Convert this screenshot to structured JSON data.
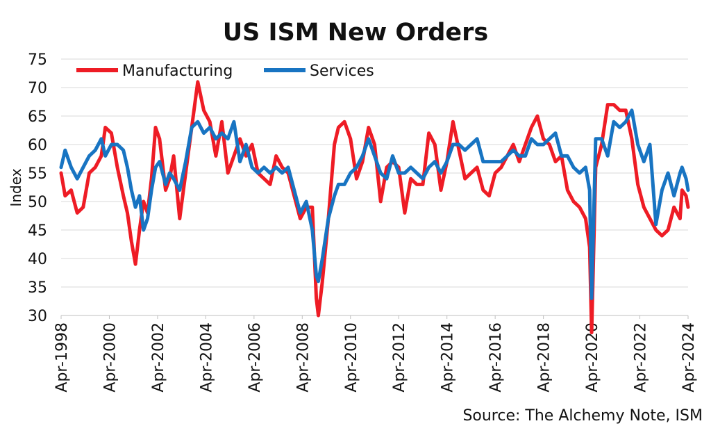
{
  "chart_data": {
    "type": "line",
    "title": "US ISM New Orders",
    "ylabel": "Index",
    "xlabel": "",
    "ylim": [
      30,
      75
    ],
    "yticks": [
      30,
      35,
      40,
      45,
      50,
      55,
      60,
      65,
      70,
      75
    ],
    "xlim": [
      "1998-04",
      "2024-04"
    ],
    "xticks": [
      "Apr-1998",
      "Apr-2000",
      "Apr-2002",
      "Apr-2004",
      "Apr-2006",
      "Apr-2008",
      "Apr-2010",
      "Apr-2012",
      "Apr-2014",
      "Apr-2016",
      "Apr-2018",
      "Apr-2020",
      "Apr-2022",
      "Apr-2024"
    ],
    "grid": true,
    "legend_position": "top-left",
    "source": "Source: The Alchemy Note, ISM",
    "series": [
      {
        "name": "Manufacturing",
        "color": "#ee1c25",
        "points": [
          [
            "1998-04",
            55
          ],
          [
            "1998-06",
            51
          ],
          [
            "1998-09",
            52
          ],
          [
            "1998-12",
            48
          ],
          [
            "1999-03",
            49
          ],
          [
            "1999-06",
            55
          ],
          [
            "1999-09",
            56
          ],
          [
            "1999-12",
            58
          ],
          [
            "2000-02",
            63
          ],
          [
            "2000-05",
            62
          ],
          [
            "2000-08",
            56
          ],
          [
            "2000-11",
            51
          ],
          [
            "2001-01",
            48
          ],
          [
            "2001-03",
            43
          ],
          [
            "2001-05",
            39
          ],
          [
            "2001-07",
            45
          ],
          [
            "2001-09",
            50
          ],
          [
            "2001-11",
            48
          ],
          [
            "2002-01",
            54
          ],
          [
            "2002-03",
            63
          ],
          [
            "2002-05",
            61
          ],
          [
            "2002-08",
            52
          ],
          [
            "2002-10",
            54
          ],
          [
            "2002-12",
            58
          ],
          [
            "2003-03",
            47
          ],
          [
            "2003-06",
            55
          ],
          [
            "2003-09",
            63
          ],
          [
            "2003-12",
            71
          ],
          [
            "2004-03",
            66
          ],
          [
            "2004-06",
            64
          ],
          [
            "2004-09",
            58
          ],
          [
            "2004-12",
            64
          ],
          [
            "2005-03",
            55
          ],
          [
            "2005-06",
            58
          ],
          [
            "2005-09",
            61
          ],
          [
            "2005-12",
            58
          ],
          [
            "2006-03",
            60
          ],
          [
            "2006-06",
            55
          ],
          [
            "2006-09",
            54
          ],
          [
            "2006-12",
            53
          ],
          [
            "2007-03",
            58
          ],
          [
            "2007-06",
            56
          ],
          [
            "2007-09",
            55
          ],
          [
            "2007-12",
            51
          ],
          [
            "2008-03",
            47
          ],
          [
            "2008-06",
            49
          ],
          [
            "2008-09",
            49
          ],
          [
            "2008-11",
            33
          ],
          [
            "2008-12",
            30
          ],
          [
            "2009-02",
            36
          ],
          [
            "2009-05",
            47
          ],
          [
            "2009-08",
            60
          ],
          [
            "2009-10",
            63
          ],
          [
            "2010-01",
            64
          ],
          [
            "2010-04",
            61
          ],
          [
            "2010-07",
            54
          ],
          [
            "2010-10",
            57
          ],
          [
            "2011-01",
            63
          ],
          [
            "2011-04",
            60
          ],
          [
            "2011-07",
            50
          ],
          [
            "2011-10",
            56
          ],
          [
            "2012-01",
            57
          ],
          [
            "2012-04",
            56
          ],
          [
            "2012-07",
            48
          ],
          [
            "2012-10",
            54
          ],
          [
            "2013-01",
            53
          ],
          [
            "2013-04",
            53
          ],
          [
            "2013-07",
            62
          ],
          [
            "2013-10",
            60
          ],
          [
            "2014-01",
            52
          ],
          [
            "2014-04",
            57
          ],
          [
            "2014-07",
            64
          ],
          [
            "2014-10",
            59
          ],
          [
            "2015-01",
            54
          ],
          [
            "2015-04",
            55
          ],
          [
            "2015-07",
            56
          ],
          [
            "2015-10",
            52
          ],
          [
            "2016-01",
            51
          ],
          [
            "2016-04",
            55
          ],
          [
            "2016-07",
            56
          ],
          [
            "2016-10",
            58
          ],
          [
            "2017-01",
            60
          ],
          [
            "2017-04",
            57
          ],
          [
            "2017-07",
            60
          ],
          [
            "2017-10",
            63
          ],
          [
            "2018-01",
            65
          ],
          [
            "2018-04",
            61
          ],
          [
            "2018-07",
            60
          ],
          [
            "2018-10",
            57
          ],
          [
            "2019-01",
            58
          ],
          [
            "2019-04",
            52
          ],
          [
            "2019-07",
            50
          ],
          [
            "2019-10",
            49
          ],
          [
            "2020-01",
            47
          ],
          [
            "2020-03",
            42
          ],
          [
            "2020-04",
            27
          ],
          [
            "2020-06",
            56
          ],
          [
            "2020-09",
            60
          ],
          [
            "2020-12",
            67
          ],
          [
            "2021-03",
            67
          ],
          [
            "2021-06",
            66
          ],
          [
            "2021-09",
            66
          ],
          [
            "2021-12",
            61
          ],
          [
            "2022-03",
            53
          ],
          [
            "2022-06",
            49
          ],
          [
            "2022-09",
            47
          ],
          [
            "2022-12",
            45
          ],
          [
            "2023-03",
            44
          ],
          [
            "2023-06",
            45
          ],
          [
            "2023-09",
            49
          ],
          [
            "2023-12",
            47
          ],
          [
            "2024-01",
            52
          ],
          [
            "2024-03",
            51
          ],
          [
            "2024-04",
            49
          ]
        ]
      },
      {
        "name": "Services",
        "color": "#1874c2",
        "points": [
          [
            "1998-04",
            56
          ],
          [
            "1998-06",
            59
          ],
          [
            "1998-09",
            56
          ],
          [
            "1998-12",
            54
          ],
          [
            "1999-03",
            56
          ],
          [
            "1999-06",
            58
          ],
          [
            "1999-09",
            59
          ],
          [
            "1999-12",
            61
          ],
          [
            "2000-02",
            58
          ],
          [
            "2000-05",
            60
          ],
          [
            "2000-08",
            60
          ],
          [
            "2000-11",
            59
          ],
          [
            "2001-01",
            56
          ],
          [
            "2001-03",
            52
          ],
          [
            "2001-05",
            49
          ],
          [
            "2001-07",
            51
          ],
          [
            "2001-09",
            45
          ],
          [
            "2001-11",
            47
          ],
          [
            "2002-01",
            52
          ],
          [
            "2002-03",
            56
          ],
          [
            "2002-05",
            57
          ],
          [
            "2002-08",
            53
          ],
          [
            "2002-10",
            55
          ],
          [
            "2002-12",
            54
          ],
          [
            "2003-03",
            52
          ],
          [
            "2003-06",
            57
          ],
          [
            "2003-09",
            63
          ],
          [
            "2003-12",
            64
          ],
          [
            "2004-03",
            62
          ],
          [
            "2004-06",
            63
          ],
          [
            "2004-09",
            61
          ],
          [
            "2004-12",
            62
          ],
          [
            "2005-03",
            61
          ],
          [
            "2005-06",
            64
          ],
          [
            "2005-09",
            57
          ],
          [
            "2005-12",
            60
          ],
          [
            "2006-03",
            56
          ],
          [
            "2006-06",
            55
          ],
          [
            "2006-09",
            56
          ],
          [
            "2006-12",
            55
          ],
          [
            "2007-03",
            56
          ],
          [
            "2007-06",
            55
          ],
          [
            "2007-09",
            56
          ],
          [
            "2007-12",
            52
          ],
          [
            "2008-03",
            48
          ],
          [
            "2008-06",
            50
          ],
          [
            "2008-09",
            45
          ],
          [
            "2008-11",
            37
          ],
          [
            "2008-12",
            36
          ],
          [
            "2009-02",
            40
          ],
          [
            "2009-05",
            47
          ],
          [
            "2009-08",
            51
          ],
          [
            "2009-10",
            53
          ],
          [
            "2010-01",
            53
          ],
          [
            "2010-04",
            55
          ],
          [
            "2010-07",
            56
          ],
          [
            "2010-10",
            58
          ],
          [
            "2011-01",
            61
          ],
          [
            "2011-04",
            58
          ],
          [
            "2011-07",
            55
          ],
          [
            "2011-10",
            54
          ],
          [
            "2012-01",
            58
          ],
          [
            "2012-04",
            55
          ],
          [
            "2012-07",
            55
          ],
          [
            "2012-10",
            56
          ],
          [
            "2013-01",
            55
          ],
          [
            "2013-04",
            54
          ],
          [
            "2013-07",
            56
          ],
          [
            "2013-10",
            57
          ],
          [
            "2014-01",
            55
          ],
          [
            "2014-04",
            57
          ],
          [
            "2014-07",
            60
          ],
          [
            "2014-10",
            60
          ],
          [
            "2015-01",
            59
          ],
          [
            "2015-04",
            60
          ],
          [
            "2015-07",
            61
          ],
          [
            "2015-10",
            57
          ],
          [
            "2016-01",
            57
          ],
          [
            "2016-04",
            57
          ],
          [
            "2016-07",
            57
          ],
          [
            "2016-10",
            58
          ],
          [
            "2017-01",
            59
          ],
          [
            "2017-04",
            58
          ],
          [
            "2017-07",
            58
          ],
          [
            "2017-10",
            61
          ],
          [
            "2018-01",
            60
          ],
          [
            "2018-04",
            60
          ],
          [
            "2018-07",
            61
          ],
          [
            "2018-10",
            62
          ],
          [
            "2019-01",
            58
          ],
          [
            "2019-04",
            58
          ],
          [
            "2019-07",
            56
          ],
          [
            "2019-10",
            55
          ],
          [
            "2020-01",
            56
          ],
          [
            "2020-03",
            52
          ],
          [
            "2020-04",
            33
          ],
          [
            "2020-06",
            61
          ],
          [
            "2020-09",
            61
          ],
          [
            "2020-12",
            58
          ],
          [
            "2021-03",
            64
          ],
          [
            "2021-06",
            63
          ],
          [
            "2021-09",
            64
          ],
          [
            "2021-12",
            66
          ],
          [
            "2022-03",
            60
          ],
          [
            "2022-06",
            57
          ],
          [
            "2022-09",
            60
          ],
          [
            "2022-12",
            46
          ],
          [
            "2023-03",
            52
          ],
          [
            "2023-06",
            55
          ],
          [
            "2023-09",
            51
          ],
          [
            "2023-12",
            55
          ],
          [
            "2024-01",
            56
          ],
          [
            "2024-03",
            54
          ],
          [
            "2024-04",
            52
          ]
        ]
      }
    ]
  }
}
